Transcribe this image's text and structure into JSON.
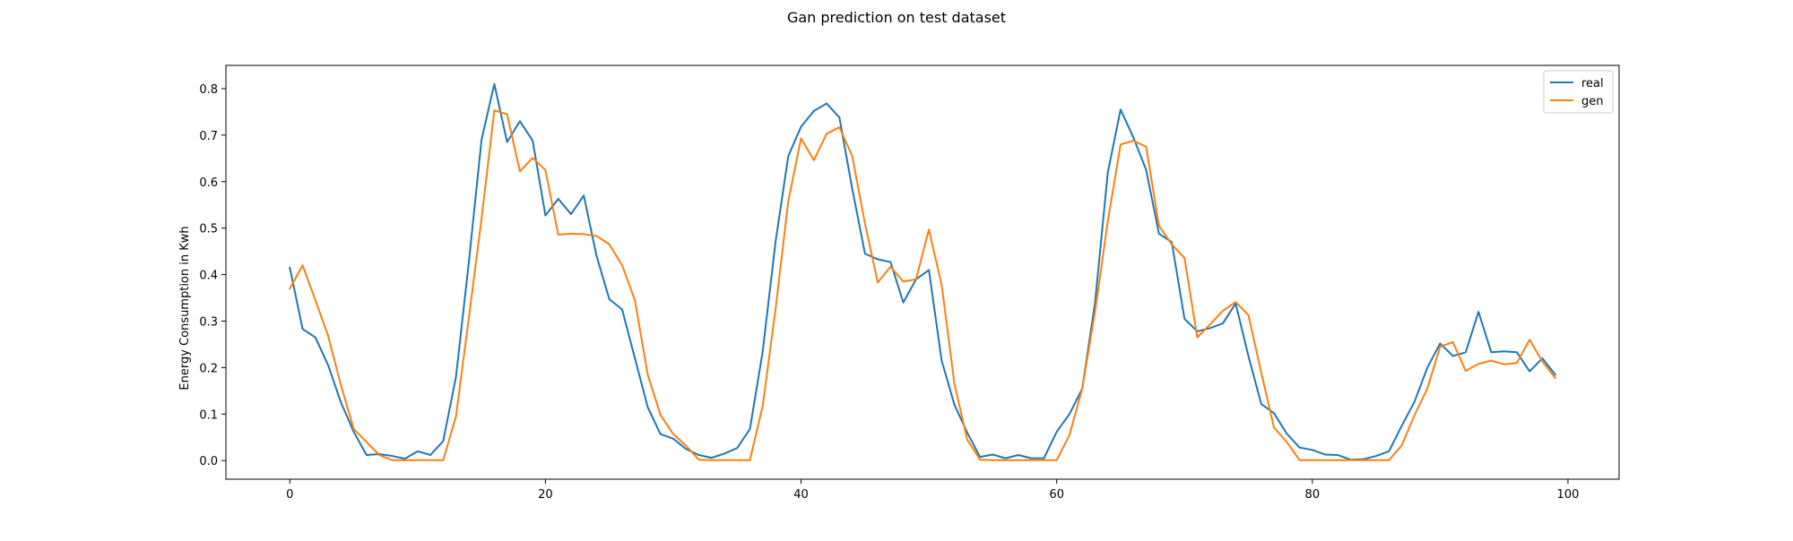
{
  "chart_data": {
    "type": "line",
    "title": "Gan prediction on test dataset",
    "xlabel": "",
    "ylabel": "Energy Consumption in Kwh",
    "xlim": [
      -5,
      104
    ],
    "ylim": [
      -0.04,
      0.85
    ],
    "xticks": [
      0,
      20,
      40,
      60,
      80,
      100
    ],
    "yticks": [
      0.0,
      0.1,
      0.2,
      0.3,
      0.4,
      0.5,
      0.6,
      0.7,
      0.8
    ],
    "xtick_labels": [
      "0",
      "20",
      "40",
      "60",
      "80",
      "100"
    ],
    "ytick_labels": [
      "0.0",
      "0.1",
      "0.2",
      "0.3",
      "0.4",
      "0.5",
      "0.6",
      "0.7",
      "0.8"
    ],
    "grid": false,
    "legend": "top-right",
    "x": [
      0,
      1,
      2,
      3,
      4,
      5,
      6,
      7,
      8,
      9,
      10,
      11,
      12,
      13,
      14,
      15,
      16,
      17,
      18,
      19,
      20,
      21,
      22,
      23,
      24,
      25,
      26,
      27,
      28,
      29,
      30,
      31,
      32,
      33,
      34,
      35,
      36,
      37,
      38,
      39,
      40,
      41,
      42,
      43,
      44,
      45,
      46,
      47,
      48,
      49,
      50,
      51,
      52,
      53,
      54,
      55,
      56,
      57,
      58,
      59,
      60,
      61,
      62,
      63,
      64,
      65,
      66,
      67,
      68,
      69,
      70,
      71,
      72,
      73,
      74,
      75,
      76,
      77,
      78,
      79,
      80,
      81,
      82,
      83,
      84,
      85,
      86,
      87,
      88,
      89,
      90,
      91,
      92,
      93,
      94,
      95,
      96,
      97,
      98,
      99
    ],
    "series": [
      {
        "name": "real",
        "color": "#1f77b4",
        "values": [
          0.415,
          0.283,
          0.265,
          0.205,
          0.125,
          0.062,
          0.012,
          0.014,
          0.01,
          0.004,
          0.02,
          0.012,
          0.042,
          0.18,
          0.425,
          0.69,
          0.81,
          0.685,
          0.73,
          0.688,
          0.527,
          0.563,
          0.53,
          0.57,
          0.44,
          0.347,
          0.325,
          0.22,
          0.115,
          0.057,
          0.047,
          0.025,
          0.012,
          0.006,
          0.015,
          0.027,
          0.068,
          0.235,
          0.47,
          0.655,
          0.718,
          0.752,
          0.768,
          0.738,
          0.585,
          0.445,
          0.433,
          0.427,
          0.34,
          0.39,
          0.41,
          0.215,
          0.12,
          0.06,
          0.008,
          0.013,
          0.005,
          0.012,
          0.005,
          0.005,
          0.062,
          0.1,
          0.155,
          0.34,
          0.62,
          0.755,
          0.695,
          0.625,
          0.488,
          0.47,
          0.305,
          0.278,
          0.285,
          0.295,
          0.338,
          0.225,
          0.122,
          0.102,
          0.058,
          0.028,
          0.023,
          0.013,
          0.012,
          0.002,
          0.003,
          0.01,
          0.02,
          0.075,
          0.127,
          0.2,
          0.252,
          0.225,
          0.233,
          0.32,
          0.233,
          0.235,
          0.233,
          0.192,
          0.22,
          0.185
        ]
      },
      {
        "name": "gen",
        "color": "#ff7f0e",
        "values": [
          0.37,
          0.42,
          0.345,
          0.268,
          0.162,
          0.068,
          0.04,
          0.012,
          0.001,
          0.001,
          0.001,
          0.001,
          0.001,
          0.095,
          0.305,
          0.52,
          0.753,
          0.745,
          0.622,
          0.651,
          0.625,
          0.486,
          0.488,
          0.487,
          0.483,
          0.465,
          0.42,
          0.345,
          0.185,
          0.098,
          0.057,
          0.032,
          0.002,
          0.001,
          0.001,
          0.001,
          0.001,
          0.118,
          0.325,
          0.558,
          0.693,
          0.646,
          0.703,
          0.717,
          0.655,
          0.51,
          0.383,
          0.417,
          0.385,
          0.39,
          0.497,
          0.378,
          0.165,
          0.045,
          0.002,
          0.001,
          0.001,
          0.001,
          0.001,
          0.001,
          0.001,
          0.055,
          0.155,
          0.32,
          0.515,
          0.68,
          0.688,
          0.675,
          0.505,
          0.465,
          0.436,
          0.265,
          0.293,
          0.322,
          0.341,
          0.313,
          0.19,
          0.071,
          0.04,
          0.001,
          0.001,
          0.001,
          0.001,
          0.001,
          0.001,
          0.001,
          0.001,
          0.033,
          0.098,
          0.155,
          0.245,
          0.255,
          0.193,
          0.208,
          0.215,
          0.207,
          0.21,
          0.26,
          0.213,
          0.178
        ]
      }
    ]
  }
}
